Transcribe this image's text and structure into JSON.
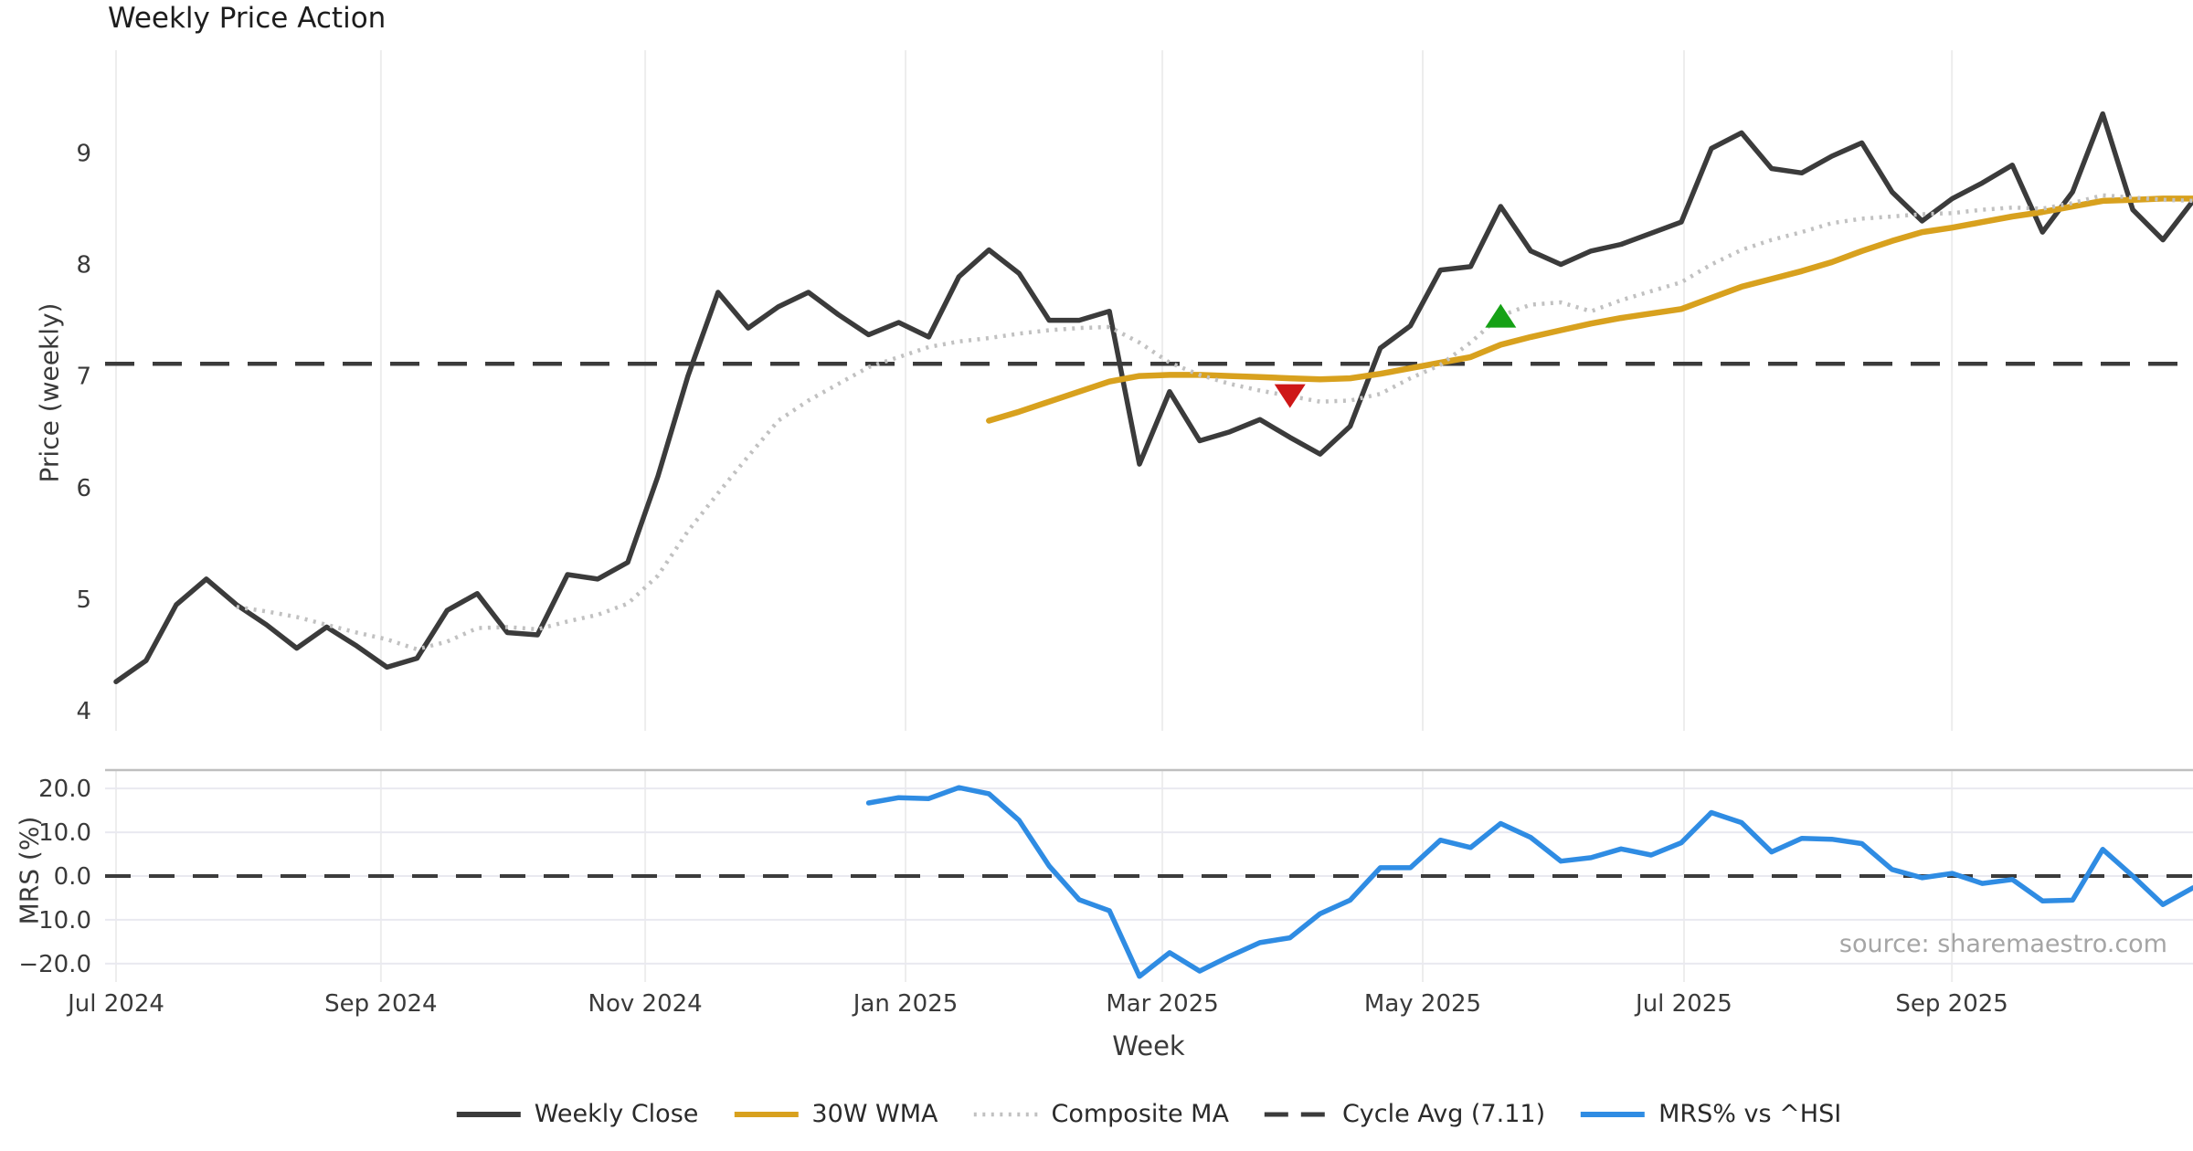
{
  "title": "Weekly Price Action",
  "source_note": "source: sharemaestro.com",
  "colors": {
    "weekly_close": "#3b3b3b",
    "wma30": "#d8a11e",
    "composite_ma": "#c1c1c1",
    "cycle_avg": "#3b3b3b",
    "mrs": "#2f8ce3",
    "sell_marker": "#ce1717",
    "buy_marker": "#16a116",
    "vgrid": "#ededed",
    "hgrid": "#e9e9f0",
    "spine": "#bfbfbf",
    "tick_text": "#3a3a3a"
  },
  "x_axis": {
    "label": "Week",
    "index_max": 69,
    "ticks": [
      {
        "pos": 0.0,
        "label": "Jul 2024"
      },
      {
        "pos": 8.8,
        "label": "Sep 2024"
      },
      {
        "pos": 17.58,
        "label": "Nov 2024"
      },
      {
        "pos": 26.23,
        "label": "Jan 2025"
      },
      {
        "pos": 34.76,
        "label": "Mar 2025"
      },
      {
        "pos": 43.41,
        "label": "May 2025"
      },
      {
        "pos": 52.09,
        "label": "Jul 2025"
      },
      {
        "pos": 60.99,
        "label": "Sep 2025"
      }
    ]
  },
  "legend": [
    {
      "label": "Weekly Close",
      "color": "#3b3b3b",
      "style": "solid"
    },
    {
      "label": "30W WMA",
      "color": "#d8a11e",
      "style": "solid"
    },
    {
      "label": "Composite MA",
      "color": "#c1c1c1",
      "style": "dotted"
    },
    {
      "label": "Cycle Avg (7.11)",
      "color": "#3b3b3b",
      "style": "dashed"
    },
    {
      "label": "MRS% vs ^HSI",
      "color": "#2f8ce3",
      "style": "solid"
    }
  ],
  "chart_data": [
    {
      "type": "line",
      "panel": "price",
      "title": "Weekly Price Action",
      "ylabel": "Price (weekly)",
      "ylim": [
        3.82,
        9.92
      ],
      "yticks": [
        {
          "v": 4,
          "label": "4"
        },
        {
          "v": 5,
          "label": "5"
        },
        {
          "v": 6,
          "label": "6"
        },
        {
          "v": 7,
          "label": "7"
        },
        {
          "v": 8,
          "label": "8"
        },
        {
          "v": 9,
          "label": "9"
        }
      ],
      "grid_horizontal": false,
      "hline": {
        "label": "Cycle Avg (7.11)",
        "value": 7.11,
        "style": "dashed",
        "color": "#3b3b3b"
      },
      "series": [
        {
          "name": "Weekly Close",
          "color": "#3b3b3b",
          "style": "solid",
          "width": 5.5,
          "start_index": 0,
          "values": [
            4.26,
            4.45,
            4.95,
            5.18,
            4.95,
            4.77,
            4.56,
            4.75,
            4.58,
            4.39,
            4.47,
            4.9,
            5.05,
            4.7,
            4.68,
            5.22,
            5.18,
            5.33,
            6.1,
            7.0,
            7.75,
            7.43,
            7.62,
            7.75,
            7.55,
            7.37,
            7.48,
            7.35,
            7.89,
            8.13,
            7.92,
            7.5,
            7.5,
            7.58,
            6.21,
            6.86,
            6.42,
            6.5,
            6.61,
            6.45,
            6.3,
            6.55,
            7.25,
            7.45,
            7.95,
            7.98,
            8.52,
            8.12,
            8.0,
            8.12,
            8.18,
            8.28,
            8.38,
            9.04,
            9.18,
            8.86,
            8.82,
            8.97,
            9.09,
            8.65,
            8.39,
            8.59,
            8.73,
            8.89,
            8.29,
            8.65,
            9.35,
            8.49,
            8.22,
            8.57
          ]
        },
        {
          "name": "30W WMA",
          "color": "#d8a11e",
          "style": "solid",
          "width": 6.5,
          "start_index": 29,
          "values": [
            6.6,
            6.68,
            6.77,
            6.86,
            6.95,
            7.0,
            7.01,
            7.01,
            7.0,
            6.99,
            6.98,
            6.97,
            6.98,
            7.02,
            7.07,
            7.12,
            7.17,
            7.28,
            7.35,
            7.41,
            7.47,
            7.52,
            7.56,
            7.6,
            7.7,
            7.8,
            7.87,
            7.94,
            8.02,
            8.12,
            8.21,
            8.29,
            8.33,
            8.38,
            8.43,
            8.47,
            8.52,
            8.57,
            8.58,
            8.59,
            8.59
          ]
        },
        {
          "name": "Composite MA",
          "color": "#c1c1c1",
          "style": "dotted",
          "width": 4.5,
          "start_index": 4,
          "values": [
            4.93,
            4.89,
            4.84,
            4.77,
            4.7,
            4.64,
            4.55,
            4.62,
            4.74,
            4.75,
            4.73,
            4.8,
            4.86,
            4.96,
            5.21,
            5.61,
            5.95,
            6.28,
            6.6,
            6.78,
            6.93,
            7.08,
            7.17,
            7.26,
            7.31,
            7.34,
            7.38,
            7.41,
            7.43,
            7.44,
            7.3,
            7.12,
            7.01,
            6.93,
            6.87,
            6.82,
            6.77,
            6.78,
            6.84,
            6.98,
            7.1,
            7.3,
            7.54,
            7.64,
            7.66,
            7.58,
            7.68,
            7.76,
            7.84,
            8.0,
            8.13,
            8.22,
            8.29,
            8.37,
            8.41,
            8.43,
            8.45,
            8.46,
            8.49,
            8.51,
            8.5,
            8.55,
            8.62,
            8.6,
            8.58,
            8.57
          ]
        }
      ],
      "markers": [
        {
          "shape": "triangle-down",
          "color": "#ce1717",
          "series": "Composite MA",
          "index": 39,
          "value": 6.82
        },
        {
          "shape": "triangle-up",
          "color": "#16a116",
          "series": "Composite MA",
          "index": 46,
          "value": 7.54
        }
      ]
    },
    {
      "type": "line",
      "panel": "mrs",
      "ylabel": "MRS (%)",
      "ylim": [
        -24.2,
        24.2
      ],
      "yticks": [
        {
          "v": 20,
          "label": "20.0"
        },
        {
          "v": 10,
          "label": "10.0"
        },
        {
          "v": 0,
          "label": "0.0"
        },
        {
          "v": -10,
          "label": "−10.0"
        },
        {
          "v": -20,
          "label": "−20.0"
        }
      ],
      "grid_horizontal": true,
      "top_spine": true,
      "hline": {
        "label": "zero line",
        "value": 0,
        "style": "dashed",
        "color": "#3b3b3b"
      },
      "series": [
        {
          "name": "MRS% vs ^HSI",
          "color": "#2f8ce3",
          "style": "solid",
          "width": 5.5,
          "start_index": 25,
          "values": [
            16.7,
            17.9,
            17.7,
            20.2,
            18.8,
            12.7,
            2.3,
            -5.4,
            -7.9,
            -22.9,
            -17.5,
            -21.7,
            -18.3,
            -15.2,
            -14.1,
            -8.6,
            -5.5,
            1.9,
            1.9,
            8.2,
            6.5,
            12.0,
            8.8,
            3.4,
            4.2,
            6.2,
            4.8,
            7.6,
            14.5,
            12.2,
            5.5,
            8.6,
            8.4,
            7.4,
            1.5,
            -0.4,
            0.6,
            -1.7,
            -0.8,
            -5.7,
            -5.5,
            6.1,
            0.0,
            -6.5,
            -2.7
          ]
        }
      ],
      "markers": []
    }
  ]
}
